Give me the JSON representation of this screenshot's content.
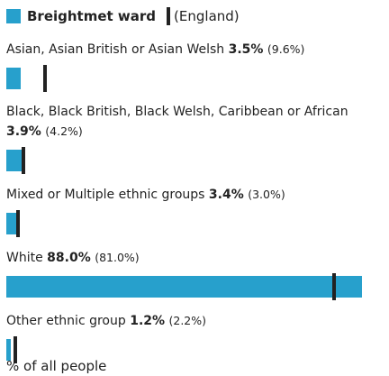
{
  "chart_data": {
    "type": "bar",
    "categories": [
      "Asian, Asian British or Asian Welsh",
      "Black, Black British, Black Welsh, Caribbean or African",
      "Mixed or Multiple ethnic groups",
      "White",
      "Other ethnic group"
    ],
    "series": [
      {
        "name": "Breightmet ward",
        "color": "#27a0cc",
        "values": [
          3.5,
          3.9,
          3.4,
          88.0,
          1.2
        ],
        "value_labels": [
          "3.5%",
          "3.9%",
          "3.4%",
          "88.0%",
          "1.2%"
        ]
      },
      {
        "name": "(England)",
        "color": "#222222",
        "values": [
          9.6,
          4.2,
          3.0,
          81.0,
          2.2
        ],
        "value_labels": [
          "(9.6%)",
          "(4.2%)",
          "(3.0%)",
          "(81.0%)",
          "(2.2%)"
        ]
      }
    ],
    "xlim": [
      0,
      88
    ],
    "x_label": "% of all people"
  }
}
